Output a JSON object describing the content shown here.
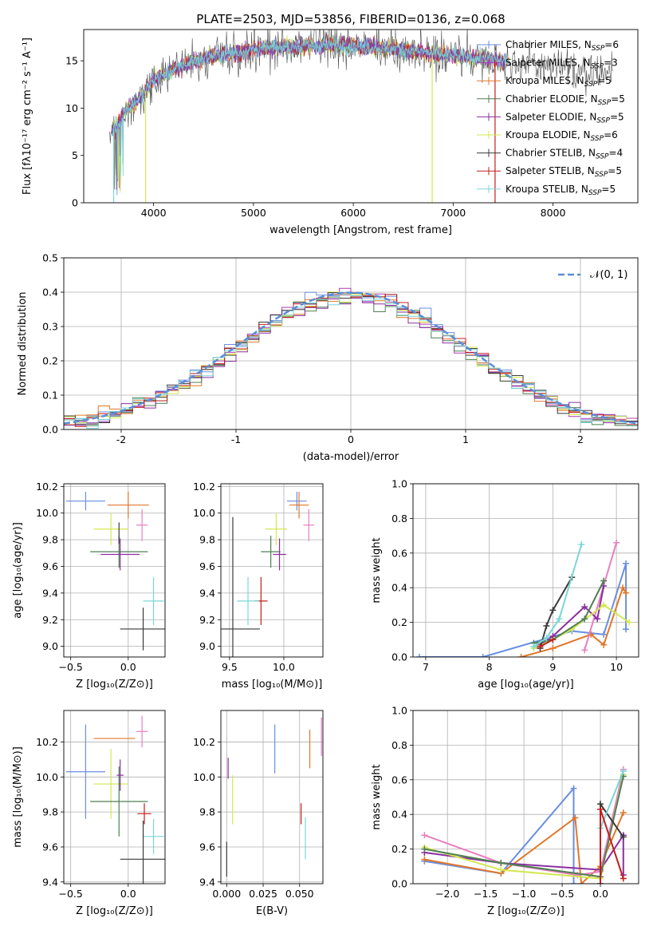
{
  "colors": {
    "chabrier_miles": "#6a8ee0",
    "salpeter_miles": "#b23bb0",
    "kroupa_miles": "#e0772a",
    "chabrier_elodie": "#4e7f52",
    "salpeter_elodie": "#8a2fa0",
    "kroupa_elodie": "#d4e852",
    "chabrier_stelib": "#3a3a3a",
    "salpeter_stelib": "#c41e1e",
    "kroupa_stelib": "#79d6d6",
    "pink": "#e87fbf",
    "grid": "#b0b0b0",
    "normal_curve": "#5b8dd9"
  },
  "chart_data": [
    {
      "id": "spectrum",
      "type": "line",
      "title": "PLATE=2503, MJD=53856, FIBERID=0136, z=0.068",
      "xlabel": "wavelength [Angstrom, rest frame]",
      "ylabel": "Flux [fλ10⁻¹⁷ erg cm⁻² s⁻¹ A⁻¹]",
      "xlim": [
        3300,
        8850
      ],
      "ylim": [
        0,
        18.3
      ],
      "xticks": [
        4000,
        5000,
        6000,
        7000,
        8000
      ],
      "yticks": [
        0,
        5,
        10,
        15
      ],
      "legend_position": "top-right",
      "legend": [
        {
          "label": "Chabrier MILES, N",
          "sub": "SSP",
          "val": "=6"
        },
        {
          "label": "Salpeter MILES, N",
          "sub": "SSP",
          "val": "=3"
        },
        {
          "label": "Kroupa MILES, N",
          "sub": "SSP",
          "val": "=5"
        },
        {
          "label": "Chabrier ELODIE, N",
          "sub": "SSP",
          "val": "=5"
        },
        {
          "label": "Salpeter ELODIE, N",
          "sub": "SSP",
          "val": "=5"
        },
        {
          "label": "Kroupa ELODIE, N",
          "sub": "SSP",
          "val": "=6"
        },
        {
          "label": "Chabrier STELIB, N",
          "sub": "SSP",
          "val": "=4"
        },
        {
          "label": "Salpeter STELIB, N",
          "sub": "SSP",
          "val": "=5"
        },
        {
          "label": "Kroupa STELIB, N",
          "sub": "SSP",
          "val": "=5"
        }
      ],
      "continuum": [
        [
          3580,
          7.5
        ],
        [
          3650,
          8.5
        ],
        [
          3700,
          9.5
        ],
        [
          3800,
          10.5
        ],
        [
          3900,
          11.5
        ],
        [
          4000,
          13.0
        ],
        [
          4200,
          14.0
        ],
        [
          4400,
          15.0
        ],
        [
          4600,
          15.5
        ],
        [
          5000,
          16.2
        ],
        [
          5500,
          16.6
        ],
        [
          6000,
          16.6
        ],
        [
          6500,
          16.2
        ],
        [
          7000,
          15.5
        ],
        [
          7500,
          15.0
        ],
        [
          7800,
          14.5
        ],
        [
          8200,
          14.0
        ],
        [
          8600,
          13.7
        ]
      ]
    },
    {
      "id": "residuals",
      "type": "histogram",
      "xlabel": "(data-model)/error",
      "ylabel": "Normed distribution",
      "xlim": [
        -2.5,
        2.5
      ],
      "ylim": [
        0,
        0.5
      ],
      "xticks": [
        -2,
        -1,
        0,
        1,
        2
      ],
      "yticks": [
        0.0,
        0.1,
        0.2,
        0.3,
        0.4,
        0.5
      ],
      "legend_position": "top-right",
      "legend": [
        {
          "label": "𝒩(0, 1)"
        }
      ],
      "bin_width": 0.1
    },
    {
      "id": "age_vs_z",
      "type": "scatter",
      "xlabel": "Z [log₁₀(Z/Z⊙)]",
      "ylabel": "age  [log₁₀(age/yr)]",
      "xlim": [
        -0.56,
        0.32
      ],
      "ylim": [
        8.92,
        10.22
      ],
      "xticks": [
        -0.5,
        0.0
      ],
      "yticks": [
        9.0,
        9.2,
        9.4,
        9.6,
        9.8,
        10.0,
        10.2
      ],
      "points": [
        {
          "series": "chabrier_miles",
          "x": -0.37,
          "y": 10.09,
          "xerr": 0.17,
          "yerr": 0.07
        },
        {
          "series": "kroupa_miles",
          "x": 0.0,
          "y": 10.06,
          "xerr": 0.18,
          "yerr": 0.1
        },
        {
          "series": "pink",
          "x": 0.12,
          "y": 9.91,
          "xerr": 0.05,
          "yerr": 0.12
        },
        {
          "series": "kroupa_elodie",
          "x": -0.15,
          "y": 9.88,
          "xerr": 0.15,
          "yerr": 0.12
        },
        {
          "series": "chabrier_elodie",
          "x": -0.08,
          "y": 9.71,
          "xerr": 0.25,
          "yerr": 0.12
        },
        {
          "series": "salpeter_elodie",
          "x": -0.07,
          "y": 9.69,
          "xerr": 0.17,
          "yerr": 0.12
        },
        {
          "series": "chabrier_stelib",
          "x": -0.08,
          "y": 9.85,
          "xerr": 0.0,
          "yerr": 0.08
        },
        {
          "series": "kroupa_stelib",
          "x": 0.22,
          "y": 9.34,
          "xerr": 0.09,
          "yerr": 0.18
        },
        {
          "series": "chabrier_stelib",
          "x": 0.13,
          "y": 9.13,
          "xerr": 0.2,
          "yerr": 0.16
        }
      ]
    },
    {
      "id": "age_vs_mass",
      "type": "scatter",
      "xlabel": "mass [log₁₀(M/M⊙)]",
      "ylabel": "",
      "xlim": [
        9.42,
        10.36
      ],
      "ylim": [
        8.92,
        10.22
      ],
      "xticks": [
        9.5,
        10.0
      ],
      "yticks": [
        9.0,
        9.2,
        9.4,
        9.6,
        9.8,
        10.0,
        10.2
      ],
      "points": [
        {
          "series": "chabrier_miles",
          "x": 10.12,
          "y": 10.09,
          "xerr": 0.09,
          "yerr": 0.07
        },
        {
          "series": "kroupa_miles",
          "x": 10.14,
          "y": 10.06,
          "xerr": 0.09,
          "yerr": 0.1
        },
        {
          "series": "pink",
          "x": 10.23,
          "y": 9.91,
          "xerr": 0.05,
          "yerr": 0.12
        },
        {
          "series": "kroupa_elodie",
          "x": 9.93,
          "y": 9.88,
          "xerr": 0.1,
          "yerr": 0.12
        },
        {
          "series": "chabrier_elodie",
          "x": 9.88,
          "y": 9.71,
          "xerr": 0.09,
          "yerr": 0.12
        },
        {
          "series": "salpeter_elodie",
          "x": 9.96,
          "y": 9.69,
          "xerr": 0.06,
          "yerr": 0.12
        },
        {
          "series": "salpeter_stelib",
          "x": 9.79,
          "y": 9.34,
          "xerr": 0.06,
          "yerr": 0.18
        },
        {
          "series": "kroupa_stelib",
          "x": 9.67,
          "y": 9.34,
          "xerr": 0.1,
          "yerr": 0.18
        },
        {
          "series": "chabrier_stelib",
          "x": 9.53,
          "y": 9.13,
          "xerr": 0.25,
          "yerr": 0.84
        }
      ]
    },
    {
      "id": "weight_vs_age",
      "type": "line",
      "xlabel": "age  [log₁₀(age/yr)]",
      "ylabel": "mass weight",
      "xlim": [
        6.8,
        10.35
      ],
      "ylim": [
        0,
        1.0
      ],
      "xticks": [
        7,
        8,
        9,
        10
      ],
      "yticks": [
        0.0,
        0.2,
        0.4,
        0.6,
        0.8,
        1.0
      ],
      "series": [
        {
          "name": "chabrier_miles",
          "x": [
            6.9,
            7.9,
            9.3,
            9.8,
            10.15,
            10.15
          ],
          "y": [
            0.0,
            0.0,
            0.15,
            0.13,
            0.54,
            0.16
          ]
        },
        {
          "name": "kroupa_miles",
          "x": [
            8.5,
            9.0,
            9.6,
            9.8,
            10.1,
            10.15
          ],
          "y": [
            0.0,
            0.05,
            0.13,
            0.07,
            0.4,
            0.37
          ]
        },
        {
          "name": "pink",
          "x": [
            9.5,
            10.0
          ],
          "y": [
            0.04,
            0.66
          ]
        },
        {
          "name": "salpeter_elodie",
          "x": [
            8.8,
            9.0,
            9.5,
            9.7,
            9.8
          ],
          "y": [
            0.07,
            0.12,
            0.29,
            0.22,
            0.41
          ]
        },
        {
          "name": "kroupa_elodie",
          "x": [
            8.7,
            9.0,
            9.3,
            9.8,
            10.2
          ],
          "y": [
            0.05,
            0.1,
            0.16,
            0.3,
            0.2
          ]
        },
        {
          "name": "chabrier_elodie",
          "x": [
            8.7,
            9.0,
            9.5,
            9.8
          ],
          "y": [
            0.08,
            0.1,
            0.22,
            0.44
          ]
        },
        {
          "name": "chabrier_stelib",
          "x": [
            8.8,
            8.9,
            9.0,
            9.3
          ],
          "y": [
            0.05,
            0.18,
            0.27,
            0.46
          ]
        },
        {
          "name": "kroupa_stelib",
          "x": [
            8.7,
            8.9,
            9.1,
            9.45
          ],
          "y": [
            0.06,
            0.11,
            0.22,
            0.65
          ]
        },
        {
          "name": "salpeter_stelib",
          "x": [
            8.8,
            9.0
          ],
          "y": [
            0.06,
            0.1
          ]
        }
      ]
    },
    {
      "id": "mass_vs_z",
      "type": "scatter",
      "xlabel": "Z [log₁₀(Z/Z⊙)]",
      "ylabel": "mass [log₁₀(M/M⊙)]",
      "xlim": [
        -0.56,
        0.32
      ],
      "ylim": [
        9.39,
        10.38
      ],
      "xticks": [
        -0.5,
        0.0
      ],
      "yticks": [
        9.4,
        9.6,
        9.8,
        10.0,
        10.2
      ],
      "points": [
        {
          "series": "chabrier_miles",
          "x": -0.37,
          "y": 10.03,
          "xerr": 0.17,
          "yerr": 0.27
        },
        {
          "series": "kroupa_miles",
          "x": -0.12,
          "y": 10.22,
          "xerr": 0.18,
          "yerr": 0.0
        },
        {
          "series": "pink",
          "x": 0.12,
          "y": 10.26,
          "xerr": 0.05,
          "yerr": 0.09
        },
        {
          "series": "kroupa_elodie",
          "x": -0.15,
          "y": 9.96,
          "xerr": 0.15,
          "yerr": 0.2
        },
        {
          "series": "chabrier_elodie",
          "x": -0.08,
          "y": 9.86,
          "xerr": 0.25,
          "yerr": 0.2
        },
        {
          "series": "salpeter_elodie",
          "x": -0.07,
          "y": 10.01,
          "xerr": 0.03,
          "yerr": 0.09
        },
        {
          "series": "salpeter_stelib",
          "x": 0.14,
          "y": 9.79,
          "xerr": 0.06,
          "yerr": 0.06
        },
        {
          "series": "kroupa_stelib",
          "x": 0.22,
          "y": 9.66,
          "xerr": 0.09,
          "yerr": 0.1
        },
        {
          "series": "chabrier_stelib",
          "x": 0.13,
          "y": 9.53,
          "xerr": 0.2,
          "yerr": 0.22
        }
      ]
    },
    {
      "id": "mass_vs_ebv",
      "type": "scatter",
      "xlabel": "E(B-V)",
      "ylabel": "",
      "xlim": [
        -0.004,
        0.066
      ],
      "ylim": [
        9.39,
        10.38
      ],
      "xticks": [
        0.0,
        0.025,
        0.05
      ],
      "xticklabels": [
        "0.000",
        "0.025",
        "0.050"
      ],
      "yticks": [
        9.4,
        9.6,
        9.8,
        10.0,
        10.2
      ],
      "points": [
        {
          "series": "chabrier_miles",
          "x": 0.033,
          "y": 10.16,
          "xerr": 0,
          "yerr": 0.14
        },
        {
          "series": "kroupa_miles",
          "x": 0.057,
          "y": 10.16,
          "xerr": 0,
          "yerr": 0.11
        },
        {
          "series": "pink",
          "x": 0.065,
          "y": 10.23,
          "xerr": 0,
          "yerr": 0.11
        },
        {
          "series": "salpeter_elodie",
          "x": 0.001,
          "y": 10.05,
          "xerr": 0,
          "yerr": 0.06
        },
        {
          "series": "kroupa_elodie",
          "x": 0.004,
          "y": 9.87,
          "xerr": 0,
          "yerr": 0.14
        },
        {
          "series": "chabrier_stelib",
          "x": 0.0,
          "y": 9.53,
          "xerr": 0,
          "yerr": 0.1
        },
        {
          "series": "salpeter_stelib",
          "x": 0.051,
          "y": 9.79,
          "xerr": 0,
          "yerr": 0.06
        },
        {
          "series": "kroupa_stelib",
          "x": 0.054,
          "y": 9.65,
          "xerr": 0,
          "yerr": 0.12
        }
      ]
    },
    {
      "id": "weight_vs_z",
      "type": "line",
      "xlabel": "Z [log₁₀(Z/Z⊙)]",
      "ylabel": "mass weight",
      "xlim": [
        -2.45,
        0.5
      ],
      "ylim": [
        0,
        1.0
      ],
      "xticks": [
        -2.0,
        -1.5,
        -1.0,
        -0.5,
        0.0
      ],
      "yticks": [
        0.0,
        0.2,
        0.4,
        0.6,
        0.8,
        1.0
      ],
      "series": [
        {
          "name": "chabrier_miles",
          "x": [
            -2.3,
            -1.3,
            -0.35,
            -0.35
          ],
          "y": [
            0.13,
            0.06,
            0.55,
            0.0
          ]
        },
        {
          "name": "kroupa_miles",
          "x": [
            -2.3,
            -1.3,
            -0.33,
            -0.25,
            0.0,
            0.3
          ],
          "y": [
            0.14,
            0.06,
            0.38,
            0.0,
            0.1,
            0.41
          ]
        },
        {
          "name": "pink",
          "x": [
            -2.3,
            -1.3,
            -0.3,
            0.0,
            0.3
          ],
          "y": [
            0.28,
            0.12,
            0.05,
            0.07,
            0.66
          ]
        },
        {
          "name": "salpeter_elodie",
          "x": [
            -2.3,
            -1.3,
            0.0,
            0.3,
            0.3
          ],
          "y": [
            0.18,
            0.12,
            0.08,
            0.28,
            0.05
          ]
        },
        {
          "name": "kroupa_elodie",
          "x": [
            -2.3,
            -1.3,
            0.0,
            0.3
          ],
          "y": [
            0.21,
            0.08,
            0.03,
            0.63
          ]
        },
        {
          "name": "chabrier_elodie",
          "x": [
            -2.3,
            -1.3,
            0.0,
            0.3
          ],
          "y": [
            0.2,
            0.12,
            0.04,
            0.62
          ]
        },
        {
          "name": "chabrier_stelib",
          "x": [
            0.0,
            0.0,
            0.3
          ],
          "y": [
            0.0,
            0.46,
            0.27
          ]
        },
        {
          "name": "kroupa_stelib",
          "x": [
            0.0,
            0.0,
            0.3
          ],
          "y": [
            0.0,
            0.32,
            0.65
          ]
        },
        {
          "name": "salpeter_stelib",
          "x": [
            0.0,
            0.0,
            0.3
          ],
          "y": [
            0.0,
            0.43,
            0.03
          ]
        }
      ]
    }
  ]
}
